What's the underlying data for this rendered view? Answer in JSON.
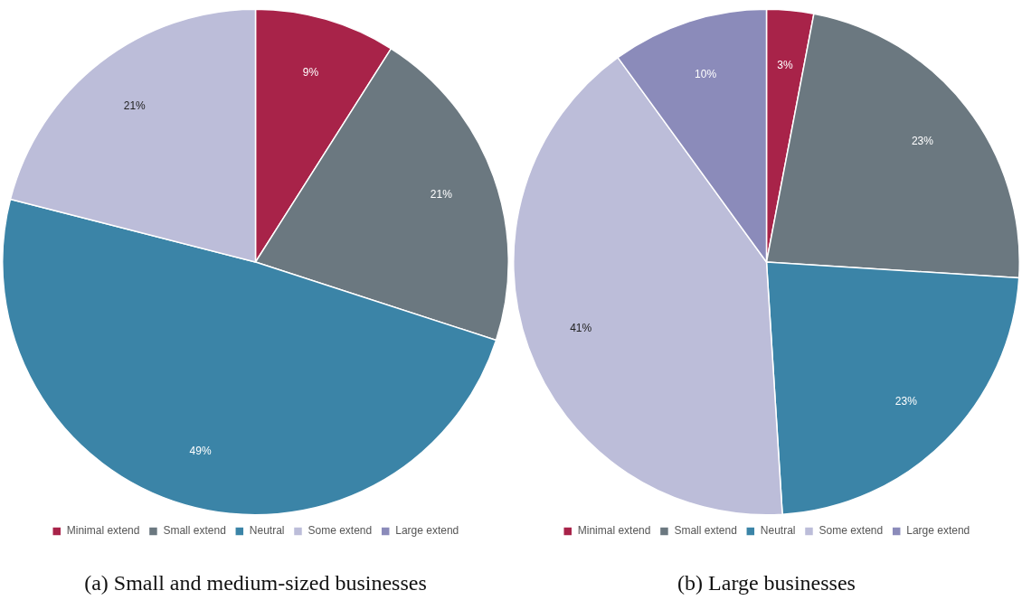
{
  "chart_data": [
    {
      "type": "pie",
      "title": "(a) Small and medium-sized businesses",
      "categories": [
        "Minimal extend",
        "Small extend",
        "Neutral",
        "Some extend",
        "Large extend"
      ],
      "values": [
        9,
        21,
        49,
        21,
        0
      ],
      "value_labels": [
        "9%",
        "21%",
        "49%",
        "21%",
        null
      ],
      "colors": [
        "#a82349",
        "#6b7880",
        "#3b84a7",
        "#bcbdd9",
        "#8b8bba"
      ],
      "legend": "bottom"
    },
    {
      "type": "pie",
      "title": "(b) Large businesses",
      "categories": [
        "Minimal extend",
        "Small extend",
        "Neutral",
        "Some extend",
        "Large extend"
      ],
      "values": [
        3,
        23,
        23,
        41,
        10
      ],
      "value_labels": [
        "3%",
        "23%",
        "23%",
        "41%",
        "10%"
      ],
      "colors": [
        "#a82349",
        "#6b7880",
        "#3b84a7",
        "#bcbdd9",
        "#8b8bba"
      ],
      "legend": "bottom"
    }
  ]
}
